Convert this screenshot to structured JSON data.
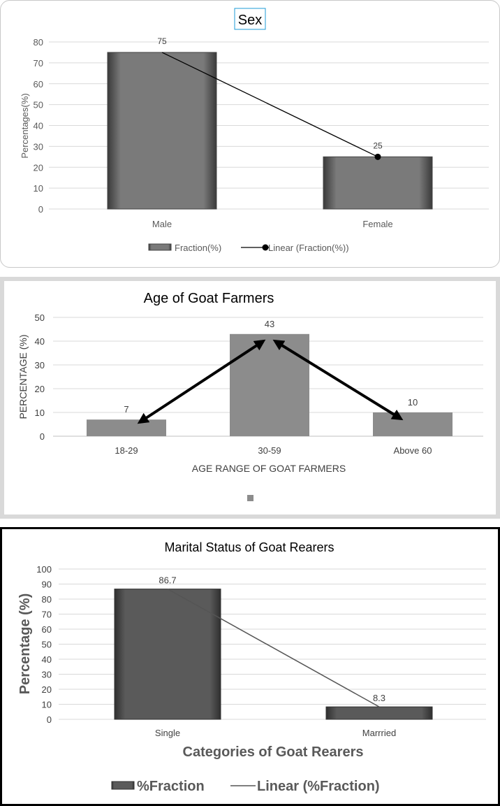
{
  "charts": [
    {
      "type": "bar",
      "title": "Sex",
      "ylabel": "Percentages(%)",
      "xlabel": "",
      "categories": [
        "Male",
        "Female"
      ],
      "values": [
        75,
        25
      ],
      "data_labels": [
        "75",
        "25"
      ],
      "ylim": [
        0,
        80
      ],
      "yticks": [
        "0",
        "10",
        "20",
        "30",
        "40",
        "50",
        "60",
        "70",
        "80"
      ],
      "grid": true,
      "legend": [
        "Fraction(%)",
        "Linear (Fraction(%))"
      ],
      "legend_position": "bottom",
      "trendline": true,
      "bar_color": "#6e6e6e",
      "line_color": "#000000"
    },
    {
      "type": "bar",
      "title": "Age of Goat Farmers",
      "ylabel": "PERCENTAGE (%)",
      "xlabel": "AGE RANGE OF GOAT FARMERS",
      "categories": [
        "18-29",
        "30-59",
        "Above 60"
      ],
      "values": [
        7,
        43,
        10
      ],
      "data_labels": [
        "7",
        "43",
        "10"
      ],
      "ylim": [
        0,
        50
      ],
      "yticks": [
        "0",
        "10",
        "20",
        "30",
        "40",
        "50"
      ],
      "grid": true,
      "legend": [
        ""
      ],
      "legend_position": "bottom",
      "arrows": true,
      "bar_color": "#8c8c8c",
      "line_color": "#000000"
    },
    {
      "type": "bar",
      "title": "Marital Status of Goat Rearers",
      "ylabel": "Percentage (%)",
      "xlabel": "Categories of Goat Rearers",
      "categories": [
        "Single",
        "Marrried"
      ],
      "values": [
        86.7,
        8.3
      ],
      "data_labels": [
        "86.7",
        "8.3"
      ],
      "ylim": [
        0,
        100
      ],
      "yticks": [
        "0",
        "10",
        "20",
        "30",
        "40",
        "50",
        "60",
        "70",
        "80",
        "90",
        "100"
      ],
      "grid": true,
      "legend": [
        "%Fraction",
        "Linear (%Fraction)"
      ],
      "legend_position": "bottom",
      "trendline": true,
      "bar_color": "#555555",
      "line_color": "#555555"
    }
  ]
}
